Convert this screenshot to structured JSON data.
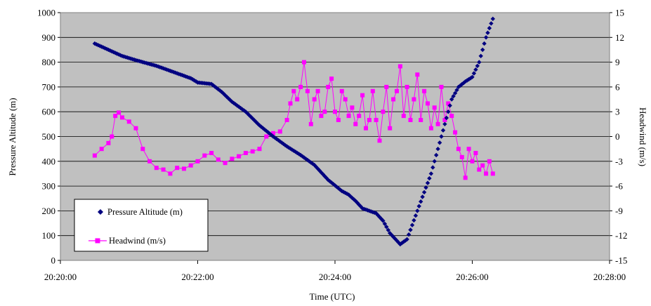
{
  "chart_data": {
    "type": "scatter",
    "title": "",
    "xlabel": "Time (UTC)",
    "ylabel_left": "Pressure Altitude (m)",
    "ylabel_right": "Headwind (m/s)",
    "x_range_minutes": [
      0,
      8
    ],
    "x_ticks": [
      {
        "m": 0,
        "label": "20:20:00"
      },
      {
        "m": 2,
        "label": "20:22:00"
      },
      {
        "m": 4,
        "label": "20:24:00"
      },
      {
        "m": 6,
        "label": "20:26:00"
      },
      {
        "m": 8,
        "label": "20:28:00"
      }
    ],
    "y_left": {
      "min": 0,
      "max": 1000,
      "step": 100
    },
    "y_right": {
      "min": -15,
      "max": 15,
      "step": 3
    },
    "grid": "horizontal",
    "background": "#c0c0c0",
    "legend_position": "bottom-left",
    "series": [
      {
        "name": "Pressure Altitude (m)",
        "axis": "left",
        "color": "#000080",
        "marker": "diamond",
        "line": false,
        "key_points": [
          [
            0.5,
            875
          ],
          [
            0.7,
            850
          ],
          [
            0.9,
            825
          ],
          [
            1.1,
            808
          ],
          [
            1.4,
            785
          ],
          [
            1.6,
            765
          ],
          [
            1.75,
            750
          ],
          [
            1.9,
            735
          ],
          [
            2.0,
            718
          ],
          [
            2.2,
            712
          ],
          [
            2.35,
            680
          ],
          [
            2.5,
            640
          ],
          [
            2.7,
            600
          ],
          [
            2.9,
            545
          ],
          [
            3.1,
            500
          ],
          [
            3.3,
            460
          ],
          [
            3.5,
            425
          ],
          [
            3.7,
            385
          ],
          [
            3.9,
            325
          ],
          [
            4.1,
            280
          ],
          [
            4.2,
            265
          ],
          [
            4.3,
            240
          ],
          [
            4.4,
            210
          ],
          [
            4.6,
            190
          ],
          [
            4.7,
            160
          ],
          [
            4.8,
            110
          ],
          [
            4.95,
            65
          ],
          [
            5.05,
            85
          ],
          [
            5.2,
            200
          ],
          [
            5.4,
            350
          ],
          [
            5.55,
            500
          ],
          [
            5.7,
            650
          ],
          [
            5.8,
            700
          ],
          [
            5.9,
            722
          ],
          [
            6.0,
            740
          ],
          [
            6.1,
            800
          ],
          [
            6.2,
            900
          ],
          [
            6.3,
            975
          ]
        ]
      },
      {
        "name": "Headwind (m/s)",
        "axis": "right",
        "color": "#ff00ff",
        "marker": "square",
        "line": true,
        "points": [
          [
            0.5,
            -2.3
          ],
          [
            0.6,
            -1.5
          ],
          [
            0.7,
            -0.8
          ],
          [
            0.75,
            0
          ],
          [
            0.8,
            2.5
          ],
          [
            0.85,
            2.9
          ],
          [
            0.9,
            2.3
          ],
          [
            1.0,
            1.8
          ],
          [
            1.1,
            1.0
          ],
          [
            1.2,
            -1.5
          ],
          [
            1.3,
            -3.0
          ],
          [
            1.4,
            -3.8
          ],
          [
            1.5,
            -4.0
          ],
          [
            1.6,
            -4.5
          ],
          [
            1.7,
            -3.8
          ],
          [
            1.8,
            -3.9
          ],
          [
            1.9,
            -3.5
          ],
          [
            2.0,
            -3.0
          ],
          [
            2.1,
            -2.3
          ],
          [
            2.2,
            -2.0
          ],
          [
            2.3,
            -2.8
          ],
          [
            2.4,
            -3.2
          ],
          [
            2.5,
            -2.7
          ],
          [
            2.6,
            -2.4
          ],
          [
            2.7,
            -2.0
          ],
          [
            2.8,
            -1.8
          ],
          [
            2.9,
            -1.5
          ],
          [
            3.0,
            0.0
          ],
          [
            3.1,
            0.4
          ],
          [
            3.2,
            0.6
          ],
          [
            3.3,
            2.0
          ],
          [
            3.35,
            4.0
          ],
          [
            3.4,
            5.5
          ],
          [
            3.45,
            4.5
          ],
          [
            3.5,
            6.0
          ],
          [
            3.55,
            9.0
          ],
          [
            3.6,
            5.5
          ],
          [
            3.65,
            1.5
          ],
          [
            3.7,
            4.5
          ],
          [
            3.75,
            5.5
          ],
          [
            3.8,
            2.5
          ],
          [
            3.85,
            3.0
          ],
          [
            3.9,
            6.0
          ],
          [
            3.95,
            7.0
          ],
          [
            4.0,
            3.0
          ],
          [
            4.05,
            2.0
          ],
          [
            4.1,
            5.5
          ],
          [
            4.15,
            4.5
          ],
          [
            4.2,
            2.5
          ],
          [
            4.25,
            3.5
          ],
          [
            4.3,
            1.5
          ],
          [
            4.35,
            2.5
          ],
          [
            4.4,
            5.0
          ],
          [
            4.45,
            1.0
          ],
          [
            4.5,
            2.0
          ],
          [
            4.55,
            5.5
          ],
          [
            4.6,
            2.0
          ],
          [
            4.65,
            -0.5
          ],
          [
            4.7,
            3.0
          ],
          [
            4.75,
            6.0
          ],
          [
            4.8,
            1.0
          ],
          [
            4.85,
            4.5
          ],
          [
            4.9,
            5.5
          ],
          [
            4.95,
            8.5
          ],
          [
            5.0,
            2.5
          ],
          [
            5.05,
            6.0
          ],
          [
            5.1,
            2.0
          ],
          [
            5.15,
            4.5
          ],
          [
            5.2,
            7.5
          ],
          [
            5.25,
            2.0
          ],
          [
            5.3,
            5.5
          ],
          [
            5.35,
            4.0
          ],
          [
            5.4,
            1.0
          ],
          [
            5.45,
            3.5
          ],
          [
            5.5,
            1.5
          ],
          [
            5.55,
            6.0
          ],
          [
            5.6,
            2.0
          ],
          [
            5.65,
            4.0
          ],
          [
            5.7,
            2.5
          ],
          [
            5.75,
            0.5
          ],
          [
            5.8,
            -1.5
          ],
          [
            5.85,
            -2.5
          ],
          [
            5.9,
            -5.0
          ],
          [
            5.95,
            -1.5
          ],
          [
            6.0,
            -3.0
          ],
          [
            6.05,
            -2.0
          ],
          [
            6.1,
            -4.0
          ],
          [
            6.15,
            -3.5
          ],
          [
            6.2,
            -4.5
          ],
          [
            6.25,
            -3.0
          ],
          [
            6.3,
            -4.5
          ]
        ]
      }
    ]
  }
}
